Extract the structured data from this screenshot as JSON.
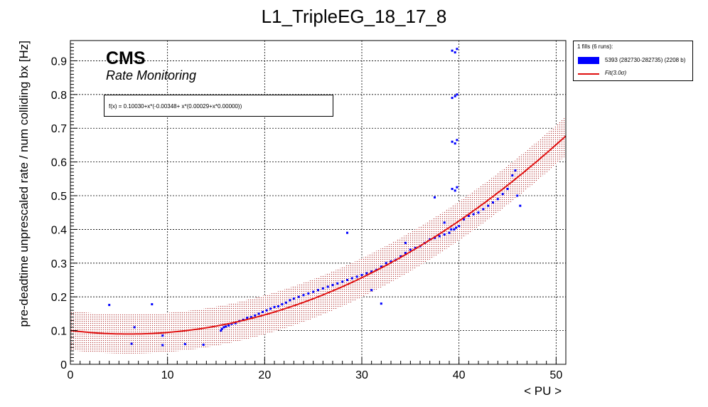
{
  "chart_data": {
    "type": "scatter",
    "title": "L1_TripleEG_18_17_8",
    "xlabel": "< PU >",
    "ylabel": "pre-deadtime unprescaled rate / num colliding bx [Hz]",
    "xlim": [
      0,
      51
    ],
    "ylim": [
      0,
      0.96
    ],
    "x_ticks": [
      "0",
      "10",
      "20",
      "30",
      "40",
      "50"
    ],
    "y_ticks": [
      "0",
      "0.1",
      "0.2",
      "0.3",
      "0.4",
      "0.5",
      "0.6",
      "0.7",
      "0.8",
      "0.9"
    ],
    "grid": true,
    "legend_position": "outside top-right",
    "colors": {
      "data": "#0000ff",
      "fit": "#e01010",
      "band": "#b03030"
    },
    "annotations": {
      "experiment": "CMS",
      "subtitle": "Rate Monitoring",
      "fit_formula": "f(x) = 0.10030+x*(-0.00348+ x*(0.00029+x*0.00000))"
    },
    "legend": {
      "header": "1 fills (6 runs):",
      "entries": [
        {
          "label": "5393 (282730-282735) (2208 b)",
          "kind": "fill"
        },
        {
          "label": "Fit(3.0σ)",
          "kind": "line"
        }
      ]
    },
    "fit": {
      "name": "Fit(3.0σ)",
      "coefficients": [
        0.1003,
        -0.00348,
        0.00029,
        0.0
      ],
      "band_halfwidth": 0.058
    },
    "series": [
      {
        "name": "5393 (282730-282735) (2208 b)",
        "points": [
          [
            4.0,
            0.176
          ],
          [
            6.3,
            0.061
          ],
          [
            6.6,
            0.11
          ],
          [
            8.4,
            0.178
          ],
          [
            9.5,
            0.057
          ],
          [
            9.5,
            0.085
          ],
          [
            11.8,
            0.06
          ],
          [
            13.7,
            0.058
          ],
          [
            15.5,
            0.1
          ],
          [
            15.6,
            0.105
          ],
          [
            15.8,
            0.11
          ],
          [
            16.0,
            0.112
          ],
          [
            16.3,
            0.115
          ],
          [
            16.6,
            0.12
          ],
          [
            17.0,
            0.122
          ],
          [
            17.4,
            0.128
          ],
          [
            17.8,
            0.132
          ],
          [
            18.2,
            0.138
          ],
          [
            18.6,
            0.14
          ],
          [
            19.0,
            0.145
          ],
          [
            19.4,
            0.15
          ],
          [
            19.8,
            0.155
          ],
          [
            20.2,
            0.16
          ],
          [
            20.6,
            0.165
          ],
          [
            21.0,
            0.17
          ],
          [
            21.4,
            0.172
          ],
          [
            21.8,
            0.178
          ],
          [
            22.2,
            0.183
          ],
          [
            22.6,
            0.19
          ],
          [
            23.0,
            0.195
          ],
          [
            23.5,
            0.2
          ],
          [
            24.0,
            0.205
          ],
          [
            24.5,
            0.21
          ],
          [
            25.0,
            0.215
          ],
          [
            25.5,
            0.22
          ],
          [
            26.0,
            0.225
          ],
          [
            26.5,
            0.23
          ],
          [
            27.0,
            0.235
          ],
          [
            27.5,
            0.24
          ],
          [
            28.0,
            0.245
          ],
          [
            28.5,
            0.25
          ],
          [
            29.0,
            0.255
          ],
          [
            29.5,
            0.26
          ],
          [
            30.0,
            0.265
          ],
          [
            30.5,
            0.27
          ],
          [
            31.0,
            0.275
          ],
          [
            31.5,
            0.28
          ],
          [
            32.0,
            0.29
          ],
          [
            32.5,
            0.3
          ],
          [
            33.0,
            0.305
          ],
          [
            33.5,
            0.31
          ],
          [
            34.0,
            0.32
          ],
          [
            34.5,
            0.33
          ],
          [
            35.0,
            0.34
          ],
          [
            35.5,
            0.345
          ],
          [
            36.0,
            0.35
          ],
          [
            36.5,
            0.36
          ],
          [
            37.0,
            0.37
          ],
          [
            37.5,
            0.375
          ],
          [
            38.0,
            0.38
          ],
          [
            38.5,
            0.385
          ],
          [
            39.0,
            0.39
          ],
          [
            39.5,
            0.4
          ],
          [
            40.0,
            0.41
          ],
          [
            40.5,
            0.43
          ],
          [
            41.0,
            0.44
          ],
          [
            41.5,
            0.445
          ],
          [
            42.0,
            0.45
          ],
          [
            42.5,
            0.46
          ],
          [
            43.0,
            0.47
          ],
          [
            43.5,
            0.48
          ],
          [
            44.0,
            0.49
          ],
          [
            44.5,
            0.505
          ],
          [
            45.0,
            0.52
          ],
          [
            45.5,
            0.56
          ],
          [
            45.8,
            0.575
          ],
          [
            46.0,
            0.5
          ],
          [
            46.3,
            0.47
          ],
          [
            28.5,
            0.39
          ],
          [
            31.0,
            0.22
          ],
          [
            32.0,
            0.18
          ],
          [
            34.5,
            0.36
          ],
          [
            37.5,
            0.495
          ],
          [
            38.5,
            0.42
          ],
          [
            39.3,
            0.93
          ],
          [
            39.6,
            0.925
          ],
          [
            39.8,
            0.935
          ],
          [
            39.3,
            0.79
          ],
          [
            39.6,
            0.795
          ],
          [
            39.8,
            0.8
          ],
          [
            39.3,
            0.66
          ],
          [
            39.6,
            0.655
          ],
          [
            39.8,
            0.665
          ],
          [
            39.3,
            0.52
          ],
          [
            39.6,
            0.515
          ],
          [
            39.8,
            0.525
          ],
          [
            39.2,
            0.4
          ],
          [
            39.7,
            0.405
          ]
        ]
      }
    ]
  }
}
